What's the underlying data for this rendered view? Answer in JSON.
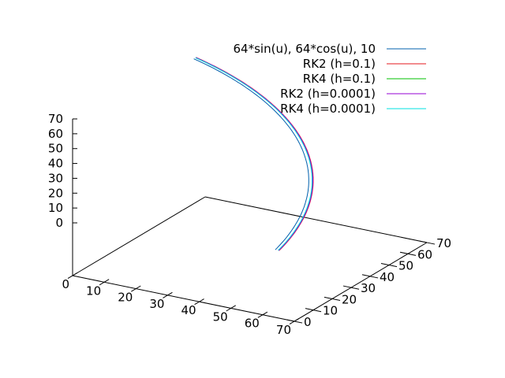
{
  "chart_data": {
    "type": "line",
    "dimension": "3d",
    "title": "",
    "xlabel": "",
    "ylabel": "",
    "zlabel": "",
    "xlim": [
      0,
      70
    ],
    "ylim": [
      0,
      70
    ],
    "zlim": [
      0,
      70
    ],
    "x_ticks": [
      "0",
      "10",
      "20",
      "30",
      "40",
      "50",
      "60",
      "70"
    ],
    "y_ticks": [
      "0",
      "10",
      "20",
      "30",
      "40",
      "50",
      "60",
      "70"
    ],
    "z_ticks": [
      "0",
      "10",
      "20",
      "30",
      "40",
      "50",
      "60",
      "70"
    ],
    "legend_position": "top-right",
    "grid": false,
    "series": [
      {
        "name": "64*sin(u), 64*cos(u), 10",
        "color": "#0060ad",
        "kind": "exact",
        "radius": 64,
        "u_range": [
          0,
          1.5708
        ]
      },
      {
        "name": "RK2 (h=0.1)",
        "color": "#e41a1c",
        "kind": "numeric",
        "radius": 65.2,
        "u_range": [
          0,
          1.5708
        ]
      },
      {
        "name": "RK4 (h=0.1)",
        "color": "#00c000",
        "kind": "numeric",
        "radius": 65.0,
        "u_range": [
          0,
          1.5708
        ]
      },
      {
        "name": "RK2 (h=0.0001)",
        "color": "#9400d3",
        "kind": "numeric",
        "radius": 65.1,
        "u_range": [
          0,
          1.5708
        ]
      },
      {
        "name": "RK4 (h=0.0001)",
        "color": "#00e0e0",
        "kind": "numeric",
        "radius": 64.9,
        "u_range": [
          0,
          1.5708
        ]
      }
    ]
  }
}
